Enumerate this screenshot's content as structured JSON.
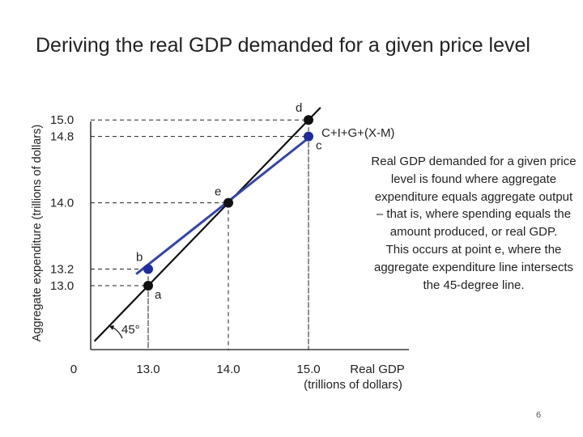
{
  "slide": {
    "title": "Deriving the real GDP demanded for a given price level",
    "explanation_1": "Real GDP demanded for a given price level is found where aggregate expenditure equals aggregate output – that is, where spending equals the amount produced, or real GDP.",
    "explanation_2": "This occurs at point e, where the aggregate expenditure line intersects the 45-degree line.",
    "page_number": "6"
  },
  "colors": {
    "ae_line": "#3344aa",
    "ae_point": "#1f2c9e",
    "line_45": "#111111",
    "text": "#222222"
  },
  "chart_data": {
    "type": "line",
    "title": "",
    "xlabel": "Real GDP",
    "xlabel_line2": "(trillions of dollars)",
    "ylabel": "Aggregate expenditure (trillions of dollars)",
    "x_origin_label": "0",
    "x_ticks": [
      {
        "value": 13.0,
        "label": "13.0"
      },
      {
        "value": 14.0,
        "label": "14.0"
      },
      {
        "value": 15.0,
        "label": "15.0"
      }
    ],
    "y_ticks": [
      {
        "value": 13.0,
        "label": "13.0"
      },
      {
        "value": 13.2,
        "label": "13.2"
      },
      {
        "value": 14.0,
        "label": "14.0"
      },
      {
        "value": 14.8,
        "label": "14.8"
      },
      {
        "value": 15.0,
        "label": "15.0"
      }
    ],
    "series": [
      {
        "name": "45-degree line",
        "label": "",
        "x": [
          12.33,
          15.15
        ],
        "y": [
          12.33,
          15.15
        ]
      },
      {
        "name": "Aggregate expenditure",
        "label": "C+I+G+(X-M)",
        "x": [
          12.85,
          15.05
        ],
        "y": [
          13.14,
          14.82
        ]
      }
    ],
    "points": [
      {
        "label": "a",
        "x": 13.0,
        "y": 13.0,
        "on": "45-degree line"
      },
      {
        "label": "b",
        "x": 13.0,
        "y": 13.2,
        "on": "Aggregate expenditure"
      },
      {
        "label": "e",
        "x": 14.0,
        "y": 14.0,
        "on": "both"
      },
      {
        "label": "c",
        "x": 15.0,
        "y": 14.8,
        "on": "Aggregate expenditure"
      },
      {
        "label": "d",
        "x": 15.0,
        "y": 15.0,
        "on": "45-degree line"
      }
    ],
    "angle_label": "45°"
  }
}
